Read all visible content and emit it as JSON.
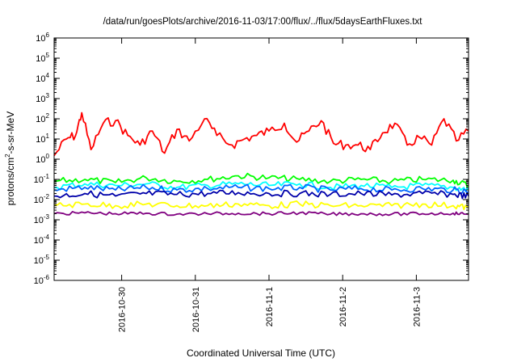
{
  "chart_data": {
    "type": "line",
    "title": "/data/run/goesPlots/archive/2016-11-03/17:00/flux/../flux/5daysEarthFluxes.txt",
    "xlabel": "Coordinated Universal Time (UTC)",
    "ylabel": "protons/cm²-s-sr-MeV",
    "y_scale": "log",
    "ylim": [
      1e-06,
      1000000
    ],
    "y_ticks": [
      {
        "base": "10",
        "exp": "-6"
      },
      {
        "base": "10",
        "exp": "-5"
      },
      {
        "base": "10",
        "exp": "-4"
      },
      {
        "base": "10",
        "exp": "-3"
      },
      {
        "base": "10",
        "exp": "-2"
      },
      {
        "base": "10",
        "exp": "-1"
      },
      {
        "base": "10",
        "exp": "0"
      },
      {
        "base": "10",
        "exp": "1"
      },
      {
        "base": "10",
        "exp": "2"
      },
      {
        "base": "10",
        "exp": "3"
      },
      {
        "base": "10",
        "exp": "4"
      },
      {
        "base": "10",
        "exp": "5"
      },
      {
        "base": "10",
        "exp": "6"
      }
    ],
    "xlim": [
      "2016-10-29T02:00",
      "2016-11-03T17:00"
    ],
    "x_ticks": [
      "2016-10-30",
      "2016-10-31",
      "2016-11-1",
      "2016-11-2",
      "2016-11-3"
    ],
    "grid": false,
    "legend": "none",
    "series": [
      {
        "color": "#ff0000",
        "x": [
          "2016-10-29T02:00",
          "2016-10-29T06:00",
          "2016-10-29T09:00",
          "2016-10-29T11:00",
          "2016-10-29T14:00",
          "2016-10-29T18:00",
          "2016-10-29T22:00",
          "2016-10-30T02:00",
          "2016-10-30T06:00",
          "2016-10-30T10:00",
          "2016-10-30T14:00",
          "2016-10-30T18:00",
          "2016-10-30T22:00",
          "2016-10-31T03:00",
          "2016-10-31T07:00",
          "2016-10-31T12:00",
          "2016-10-31T16:00",
          "2016-10-31T20:00",
          "2016-11-01T00:00",
          "2016-11-01T05:00",
          "2016-11-01T09:00",
          "2016-11-01T13:00",
          "2016-11-01T17:00",
          "2016-11-01T21:00",
          "2016-11-02T01:00",
          "2016-11-02T05:00",
          "2016-11-02T09:00",
          "2016-11-02T13:00",
          "2016-11-02T17:00",
          "2016-11-02T21:00",
          "2016-11-03T01:00",
          "2016-11-03T05:00",
          "2016-11-03T09:00",
          "2016-11-03T13:00",
          "2016-11-03T17:00"
        ],
        "y": [
          1.5,
          10,
          15,
          200,
          3,
          60,
          80,
          15,
          5,
          25,
          2,
          30,
          8,
          100,
          15,
          5,
          10,
          15,
          25,
          60,
          7,
          25,
          80,
          6,
          5,
          5,
          3,
          20,
          60,
          5,
          12,
          5,
          100,
          8,
          25
        ]
      },
      {
        "color": "#00ff00",
        "x": [
          "2016-10-29T02:00",
          "2016-10-29T12:00",
          "2016-10-29T22:00",
          "2016-10-30T08:00",
          "2016-10-30T18:00",
          "2016-10-31T04:00",
          "2016-10-31T14:00",
          "2016-11-01T00:00",
          "2016-11-01T10:00",
          "2016-11-01T20:00",
          "2016-11-02T06:00",
          "2016-11-02T16:00",
          "2016-11-03T02:00",
          "2016-11-03T12:00",
          "2016-11-03T17:00"
        ],
        "y": [
          0.08,
          0.1,
          0.07,
          0.12,
          0.08,
          0.1,
          0.15,
          0.12,
          0.1,
          0.08,
          0.1,
          0.08,
          0.1,
          0.09,
          0.05
        ]
      },
      {
        "color": "#00ffff",
        "x": [
          "2016-10-29T02:00",
          "2016-10-29T12:00",
          "2016-10-29T22:00",
          "2016-10-30T08:00",
          "2016-10-30T18:00",
          "2016-10-31T04:00",
          "2016-10-31T14:00",
          "2016-11-01T00:00",
          "2016-11-01T10:00",
          "2016-11-01T20:00",
          "2016-11-02T06:00",
          "2016-11-02T16:00",
          "2016-11-03T02:00",
          "2016-11-03T12:00",
          "2016-11-03T17:00"
        ],
        "y": [
          0.04,
          0.06,
          0.05,
          0.06,
          0.04,
          0.05,
          0.06,
          0.05,
          0.06,
          0.04,
          0.05,
          0.04,
          0.05,
          0.04,
          0.03
        ]
      },
      {
        "color": "#0066ff",
        "x": [
          "2016-10-29T02:00",
          "2016-10-29T12:00",
          "2016-10-29T22:00",
          "2016-10-30T08:00",
          "2016-10-30T18:00",
          "2016-10-31T04:00",
          "2016-10-31T14:00",
          "2016-11-01T00:00",
          "2016-11-01T10:00",
          "2016-11-01T20:00",
          "2016-11-02T06:00",
          "2016-11-02T16:00",
          "2016-11-03T02:00",
          "2016-11-03T12:00",
          "2016-11-03T17:00"
        ],
        "y": [
          0.03,
          0.04,
          0.03,
          0.04,
          0.03,
          0.035,
          0.04,
          0.035,
          0.04,
          0.03,
          0.035,
          0.03,
          0.035,
          0.03,
          0.025
        ]
      },
      {
        "color": "#0000aa",
        "x": [
          "2016-10-29T02:00",
          "2016-10-29T12:00",
          "2016-10-29T22:00",
          "2016-10-30T08:00",
          "2016-10-30T18:00",
          "2016-10-31T04:00",
          "2016-10-31T14:00",
          "2016-11-01T00:00",
          "2016-11-01T10:00",
          "2016-11-01T20:00",
          "2016-11-02T06:00",
          "2016-11-02T16:00",
          "2016-11-03T02:00",
          "2016-11-03T12:00",
          "2016-11-03T17:00"
        ],
        "y": [
          0.015,
          0.02,
          0.015,
          0.02,
          0.018,
          0.02,
          0.022,
          0.02,
          0.02,
          0.018,
          0.02,
          0.017,
          0.02,
          0.018,
          0.015
        ]
      },
      {
        "color": "#ffff00",
        "x": [
          "2016-10-29T02:00",
          "2016-10-29T12:00",
          "2016-10-29T22:00",
          "2016-10-30T08:00",
          "2016-10-30T18:00",
          "2016-10-31T04:00",
          "2016-10-31T14:00",
          "2016-11-01T00:00",
          "2016-11-01T10:00",
          "2016-11-01T20:00",
          "2016-11-02T06:00",
          "2016-11-02T16:00",
          "2016-11-03T02:00",
          "2016-11-03T12:00",
          "2016-11-03T17:00"
        ],
        "y": [
          0.005,
          0.006,
          0.005,
          0.006,
          0.005,
          0.005,
          0.006,
          0.005,
          0.006,
          0.005,
          0.005,
          0.005,
          0.006,
          0.005,
          0.004
        ]
      },
      {
        "color": "#800080",
        "x": [
          "2016-10-29T02:00",
          "2016-10-29T12:00",
          "2016-10-29T22:00",
          "2016-10-30T08:00",
          "2016-10-30T18:00",
          "2016-10-31T04:00",
          "2016-10-31T14:00",
          "2016-11-01T00:00",
          "2016-11-01T10:00",
          "2016-11-01T20:00",
          "2016-11-02T06:00",
          "2016-11-02T16:00",
          "2016-11-03T02:00",
          "2016-11-03T12:00",
          "2016-11-03T17:00"
        ],
        "y": [
          0.002,
          0.0022,
          0.002,
          0.0021,
          0.0019,
          0.002,
          0.0021,
          0.002,
          0.0022,
          0.0019,
          0.002,
          0.0019,
          0.002,
          0.0021,
          0.0019
        ]
      }
    ]
  }
}
